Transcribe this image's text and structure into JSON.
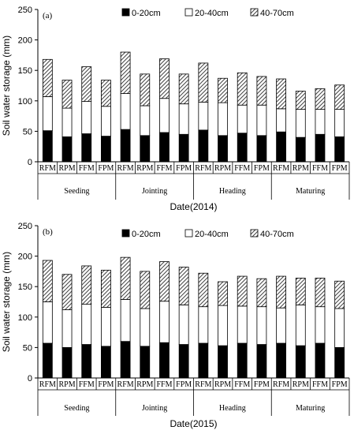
{
  "chart_data": [
    {
      "type": "bar",
      "stacked": true,
      "panel_label": "(a)",
      "xlabel": "Date(2014)",
      "ylabel": "Soil water storage (mm)",
      "ylim": [
        0,
        250
      ],
      "yticks": [
        0,
        50,
        100,
        150,
        200,
        250
      ],
      "categories": [
        "RFM",
        "RPM",
        "FFM",
        "FPM",
        "RFM",
        "RPM",
        "FFM",
        "FPM",
        "RFM",
        "RPM",
        "FFM",
        "FPM",
        "RFM",
        "RPM",
        "FFM",
        "FPM"
      ],
      "groups": [
        "Seeding",
        "Jointing",
        "Heading",
        "Maturing"
      ],
      "legend_position": "top",
      "series": [
        {
          "name": "0-20cm",
          "values": [
            51,
            41,
            46,
            42,
            53,
            43,
            48,
            45,
            52,
            43,
            47,
            43,
            49,
            40,
            45,
            41
          ]
        },
        {
          "name": "20-40cm",
          "values": [
            56,
            47,
            53,
            49,
            59,
            49,
            56,
            50,
            46,
            54,
            46,
            50,
            38,
            46,
            41,
            45
          ]
        },
        {
          "name": "40-70cm",
          "values": [
            61,
            46,
            57,
            43,
            68,
            52,
            65,
            49,
            64,
            40,
            53,
            47,
            49,
            30,
            34,
            40
          ]
        }
      ]
    },
    {
      "type": "bar",
      "stacked": true,
      "panel_label": "(b)",
      "xlabel": "Date(2015)",
      "ylabel": "Soil water storage (mm)",
      "ylim": [
        0,
        250
      ],
      "yticks": [
        0,
        50,
        100,
        150,
        200,
        250
      ],
      "categories": [
        "RFM",
        "RPM",
        "FFM",
        "FPM",
        "RFM",
        "RPM",
        "FFM",
        "FPM",
        "RFM",
        "RPM",
        "FFM",
        "FPM",
        "RFM",
        "RPM",
        "FFM",
        "FPM"
      ],
      "groups": [
        "Seeding",
        "Jointing",
        "Heading",
        "Maturing"
      ],
      "legend_position": "top",
      "series": [
        {
          "name": "0-20cm",
          "values": [
            57,
            50,
            55,
            52,
            60,
            52,
            58,
            55,
            57,
            53,
            57,
            55,
            57,
            53,
            57,
            50
          ]
        },
        {
          "name": "20-40cm",
          "values": [
            68,
            62,
            66,
            64,
            69,
            62,
            68,
            65,
            60,
            66,
            61,
            62,
            58,
            67,
            60,
            64
          ]
        },
        {
          "name": "40-70cm",
          "values": [
            68,
            58,
            63,
            61,
            69,
            61,
            65,
            62,
            55,
            39,
            49,
            46,
            52,
            44,
            47,
            45
          ]
        }
      ]
    }
  ],
  "colors": {
    "seg0": "#000000",
    "seg1": "#ffffff",
    "seg2_hatch": "#555555"
  }
}
